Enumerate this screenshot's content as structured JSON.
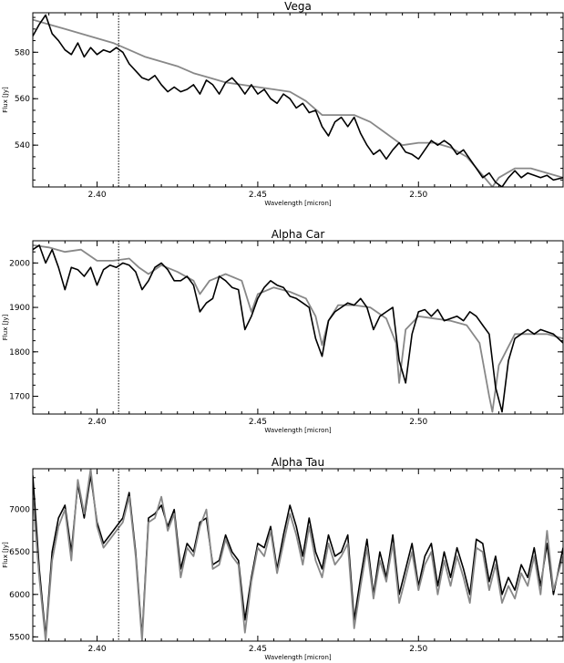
{
  "chart_data": [
    {
      "type": "line",
      "title": "Vega",
      "xlabel": "Wavelength [micron]",
      "ylabel": "Flux [Jy]",
      "xlim": [
        2.38,
        2.545
      ],
      "ylim": [
        522,
        597
      ],
      "xticks": [
        "2.40",
        "2.45",
        "2.50"
      ],
      "yticks": [
        "540",
        "560",
        "580"
      ],
      "marker_x": 2.4067,
      "series": [
        {
          "color": "#000000",
          "x": [
            2.38,
            2.382,
            2.384,
            2.386,
            2.388,
            2.39,
            2.392,
            2.394,
            2.396,
            2.398,
            2.4,
            2.402,
            2.404,
            2.406,
            2.408,
            2.41,
            2.412,
            2.414,
            2.416,
            2.418,
            2.42,
            2.422,
            2.424,
            2.426,
            2.428,
            2.43,
            2.432,
            2.434,
            2.436,
            2.438,
            2.44,
            2.442,
            2.444,
            2.446,
            2.448,
            2.45,
            2.452,
            2.454,
            2.456,
            2.458,
            2.46,
            2.462,
            2.464,
            2.466,
            2.468,
            2.47,
            2.472,
            2.474,
            2.476,
            2.478,
            2.48,
            2.482,
            2.484,
            2.486,
            2.488,
            2.49,
            2.492,
            2.494,
            2.496,
            2.498,
            2.5,
            2.502,
            2.504,
            2.506,
            2.508,
            2.51,
            2.512,
            2.514,
            2.516,
            2.518,
            2.52,
            2.522,
            2.524,
            2.526,
            2.528,
            2.53,
            2.532,
            2.534,
            2.536,
            2.538,
            2.54,
            2.542,
            2.545
          ],
          "y": [
            587,
            592,
            596,
            588,
            585,
            581,
            579,
            584,
            578,
            582,
            579,
            581,
            580,
            582,
            580,
            575,
            572,
            569,
            568,
            570,
            566,
            563,
            565,
            563,
            564,
            566,
            562,
            568,
            566,
            562,
            567,
            569,
            566,
            562,
            566,
            562,
            564,
            560,
            558,
            562,
            560,
            556,
            558,
            554,
            555,
            548,
            544,
            550,
            552,
            548,
            552,
            545,
            540,
            536,
            538,
            534,
            538,
            541,
            537,
            536,
            534,
            538,
            542,
            540,
            542,
            540,
            536,
            538,
            534,
            530,
            526,
            528,
            524,
            522,
            526,
            529,
            526,
            528,
            527,
            526,
            527,
            525,
            526
          ]
        },
        {
          "color": "#888888",
          "x": [
            2.38,
            2.385,
            2.39,
            2.395,
            2.4,
            2.405,
            2.41,
            2.415,
            2.42,
            2.425,
            2.43,
            2.435,
            2.44,
            2.445,
            2.45,
            2.455,
            2.46,
            2.465,
            2.47,
            2.475,
            2.48,
            2.485,
            2.49,
            2.495,
            2.5,
            2.505,
            2.51,
            2.515,
            2.52,
            2.523,
            2.525,
            2.53,
            2.535,
            2.54,
            2.545
          ],
          "y": [
            594,
            592,
            590,
            588,
            586,
            584,
            581,
            578,
            576,
            574,
            571,
            569,
            567,
            566,
            565,
            564,
            563,
            559,
            553,
            553,
            553,
            550,
            545,
            540,
            541,
            541,
            539,
            535,
            527,
            522,
            526,
            530,
            530,
            528,
            526
          ]
        }
      ]
    },
    {
      "type": "line",
      "title": "Alpha Car",
      "xlabel": "Wavelength [micron]",
      "ylabel": "Flux [Jy]",
      "xlim": [
        2.38,
        2.545
      ],
      "ylim": [
        1660,
        2050
      ],
      "xticks": [
        "2.40",
        "2.45",
        "2.50"
      ],
      "yticks": [
        "1700",
        "1800",
        "1900",
        "2000"
      ],
      "marker_x": 2.4067,
      "series": [
        {
          "color": "#000000",
          "x": [
            2.38,
            2.382,
            2.384,
            2.386,
            2.388,
            2.39,
            2.392,
            2.394,
            2.396,
            2.398,
            2.4,
            2.402,
            2.404,
            2.406,
            2.408,
            2.41,
            2.412,
            2.414,
            2.416,
            2.418,
            2.42,
            2.422,
            2.424,
            2.426,
            2.428,
            2.43,
            2.432,
            2.434,
            2.436,
            2.438,
            2.44,
            2.442,
            2.444,
            2.446,
            2.448,
            2.45,
            2.452,
            2.454,
            2.456,
            2.458,
            2.46,
            2.462,
            2.464,
            2.466,
            2.468,
            2.47,
            2.472,
            2.474,
            2.476,
            2.478,
            2.48,
            2.482,
            2.484,
            2.486,
            2.488,
            2.49,
            2.492,
            2.494,
            2.496,
            2.498,
            2.5,
            2.502,
            2.504,
            2.506,
            2.508,
            2.51,
            2.512,
            2.514,
            2.516,
            2.518,
            2.52,
            2.522,
            2.524,
            2.526,
            2.528,
            2.53,
            2.532,
            2.534,
            2.536,
            2.538,
            2.54,
            2.542,
            2.545
          ],
          "y": [
            2030,
            2040,
            2000,
            2030,
            1990,
            1940,
            1990,
            1985,
            1970,
            1990,
            1950,
            1985,
            1995,
            1990,
            2000,
            1995,
            1980,
            1940,
            1960,
            1990,
            2000,
            1985,
            1960,
            1960,
            1970,
            1950,
            1890,
            1910,
            1920,
            1970,
            1960,
            1945,
            1940,
            1850,
            1880,
            1920,
            1945,
            1960,
            1950,
            1945,
            1925,
            1920,
            1910,
            1900,
            1830,
            1790,
            1870,
            1890,
            1900,
            1910,
            1905,
            1920,
            1900,
            1850,
            1880,
            1890,
            1900,
            1780,
            1730,
            1840,
            1890,
            1895,
            1880,
            1895,
            1870,
            1875,
            1880,
            1870,
            1890,
            1880,
            1860,
            1840,
            1720,
            1665,
            1780,
            1830,
            1840,
            1850,
            1840,
            1850,
            1845,
            1840,
            1820
          ]
        },
        {
          "color": "#888888",
          "x": [
            2.38,
            2.385,
            2.39,
            2.395,
            2.4,
            2.405,
            2.41,
            2.413,
            2.416,
            2.42,
            2.425,
            2.43,
            2.432,
            2.435,
            2.44,
            2.445,
            2.448,
            2.45,
            2.455,
            2.46,
            2.465,
            2.468,
            2.47,
            2.472,
            2.475,
            2.48,
            2.485,
            2.49,
            2.493,
            2.494,
            2.496,
            2.5,
            2.505,
            2.51,
            2.515,
            2.519,
            2.522,
            2.523,
            2.525,
            2.53,
            2.535,
            2.54,
            2.545
          ],
          "y": [
            2040,
            2035,
            2025,
            2030,
            2005,
            2005,
            2010,
            1990,
            1975,
            1995,
            1980,
            1960,
            1930,
            1960,
            1975,
            1960,
            1890,
            1930,
            1945,
            1935,
            1920,
            1880,
            1815,
            1870,
            1905,
            1905,
            1900,
            1875,
            1820,
            1730,
            1850,
            1880,
            1875,
            1870,
            1860,
            1820,
            1700,
            1665,
            1770,
            1840,
            1840,
            1840,
            1830
          ]
        }
      ]
    },
    {
      "type": "line",
      "title": "Alpha Tau",
      "xlabel": "Wavelength [micron]",
      "ylabel": "Flux [Jy]",
      "xlim": [
        2.38,
        2.545
      ],
      "ylim": [
        5450,
        7480
      ],
      "xticks": [
        "2.40",
        "2.45",
        "2.50"
      ],
      "yticks": [
        "5500",
        "6000",
        "6500",
        "7000"
      ],
      "marker_x": 2.4067,
      "series": [
        {
          "color": "#000000",
          "x": [
            2.38,
            2.382,
            2.384,
            2.386,
            2.388,
            2.39,
            2.392,
            2.394,
            2.396,
            2.398,
            2.4,
            2.402,
            2.404,
            2.406,
            2.408,
            2.41,
            2.412,
            2.414,
            2.416,
            2.418,
            2.42,
            2.422,
            2.424,
            2.426,
            2.428,
            2.43,
            2.432,
            2.434,
            2.436,
            2.438,
            2.44,
            2.442,
            2.444,
            2.446,
            2.448,
            2.45,
            2.452,
            2.454,
            2.456,
            2.458,
            2.46,
            2.462,
            2.464,
            2.466,
            2.468,
            2.47,
            2.472,
            2.474,
            2.476,
            2.478,
            2.48,
            2.482,
            2.484,
            2.486,
            2.488,
            2.49,
            2.492,
            2.494,
            2.496,
            2.498,
            2.5,
            2.502,
            2.504,
            2.506,
            2.508,
            2.51,
            2.512,
            2.514,
            2.516,
            2.518,
            2.52,
            2.522,
            2.524,
            2.526,
            2.528,
            2.53,
            2.532,
            2.534,
            2.536,
            2.538,
            2.54,
            2.542,
            2.545
          ],
          "y": [
            7400,
            6300,
            5500,
            6500,
            6900,
            7050,
            6500,
            7300,
            6900,
            7400,
            6850,
            6600,
            6700,
            6800,
            6900,
            7200,
            6500,
            5500,
            6900,
            6950,
            7050,
            6800,
            7000,
            6300,
            6600,
            6500,
            6850,
            6900,
            6350,
            6400,
            6700,
            6500,
            6400,
            5700,
            6200,
            6600,
            6550,
            6800,
            6300,
            6700,
            7050,
            6800,
            6450,
            6900,
            6500,
            6300,
            6700,
            6450,
            6500,
            6700,
            5700,
            6200,
            6650,
            6000,
            6500,
            6200,
            6700,
            6000,
            6300,
            6600,
            6100,
            6450,
            6600,
            6100,
            6500,
            6200,
            6550,
            6300,
            6000,
            6650,
            6600,
            6150,
            6450,
            6000,
            6200,
            6050,
            6350,
            6200,
            6550,
            6100,
            6600,
            6000,
            6550
          ]
        },
        {
          "color": "#888888",
          "x": [
            2.38,
            2.382,
            2.384,
            2.386,
            2.388,
            2.39,
            2.392,
            2.394,
            2.396,
            2.398,
            2.4,
            2.402,
            2.404,
            2.406,
            2.408,
            2.41,
            2.412,
            2.414,
            2.416,
            2.418,
            2.42,
            2.422,
            2.424,
            2.426,
            2.428,
            2.43,
            2.432,
            2.434,
            2.436,
            2.438,
            2.44,
            2.442,
            2.444,
            2.446,
            2.448,
            2.45,
            2.452,
            2.454,
            2.456,
            2.458,
            2.46,
            2.462,
            2.464,
            2.466,
            2.468,
            2.47,
            2.472,
            2.474,
            2.476,
            2.478,
            2.48,
            2.482,
            2.484,
            2.486,
            2.488,
            2.49,
            2.492,
            2.494,
            2.496,
            2.498,
            2.5,
            2.502,
            2.504,
            2.506,
            2.508,
            2.51,
            2.512,
            2.514,
            2.516,
            2.518,
            2.52,
            2.522,
            2.524,
            2.526,
            2.528,
            2.53,
            2.532,
            2.534,
            2.536,
            2.538,
            2.54,
            2.542,
            2.545
          ],
          "y": [
            7150,
            6200,
            5450,
            6400,
            6800,
            7000,
            6400,
            7350,
            6950,
            7480,
            6800,
            6550,
            6650,
            6750,
            6850,
            7150,
            6450,
            5450,
            6850,
            6900,
            7150,
            6750,
            6950,
            6200,
            6550,
            6450,
            6800,
            7000,
            6300,
            6350,
            6650,
            6450,
            6350,
            5550,
            6150,
            6550,
            6450,
            6750,
            6250,
            6600,
            6950,
            6700,
            6350,
            6800,
            6400,
            6200,
            6600,
            6350,
            6450,
            6600,
            5600,
            6100,
            6550,
            5950,
            6400,
            6150,
            6600,
            5900,
            6200,
            6500,
            6050,
            6350,
            6500,
            6000,
            6400,
            6100,
            6450,
            6200,
            5900,
            6550,
            6500,
            6050,
            6350,
            5900,
            6100,
            5950,
            6250,
            6100,
            6450,
            6000,
            6750,
            6050,
            6450
          ]
        }
      ]
    }
  ]
}
